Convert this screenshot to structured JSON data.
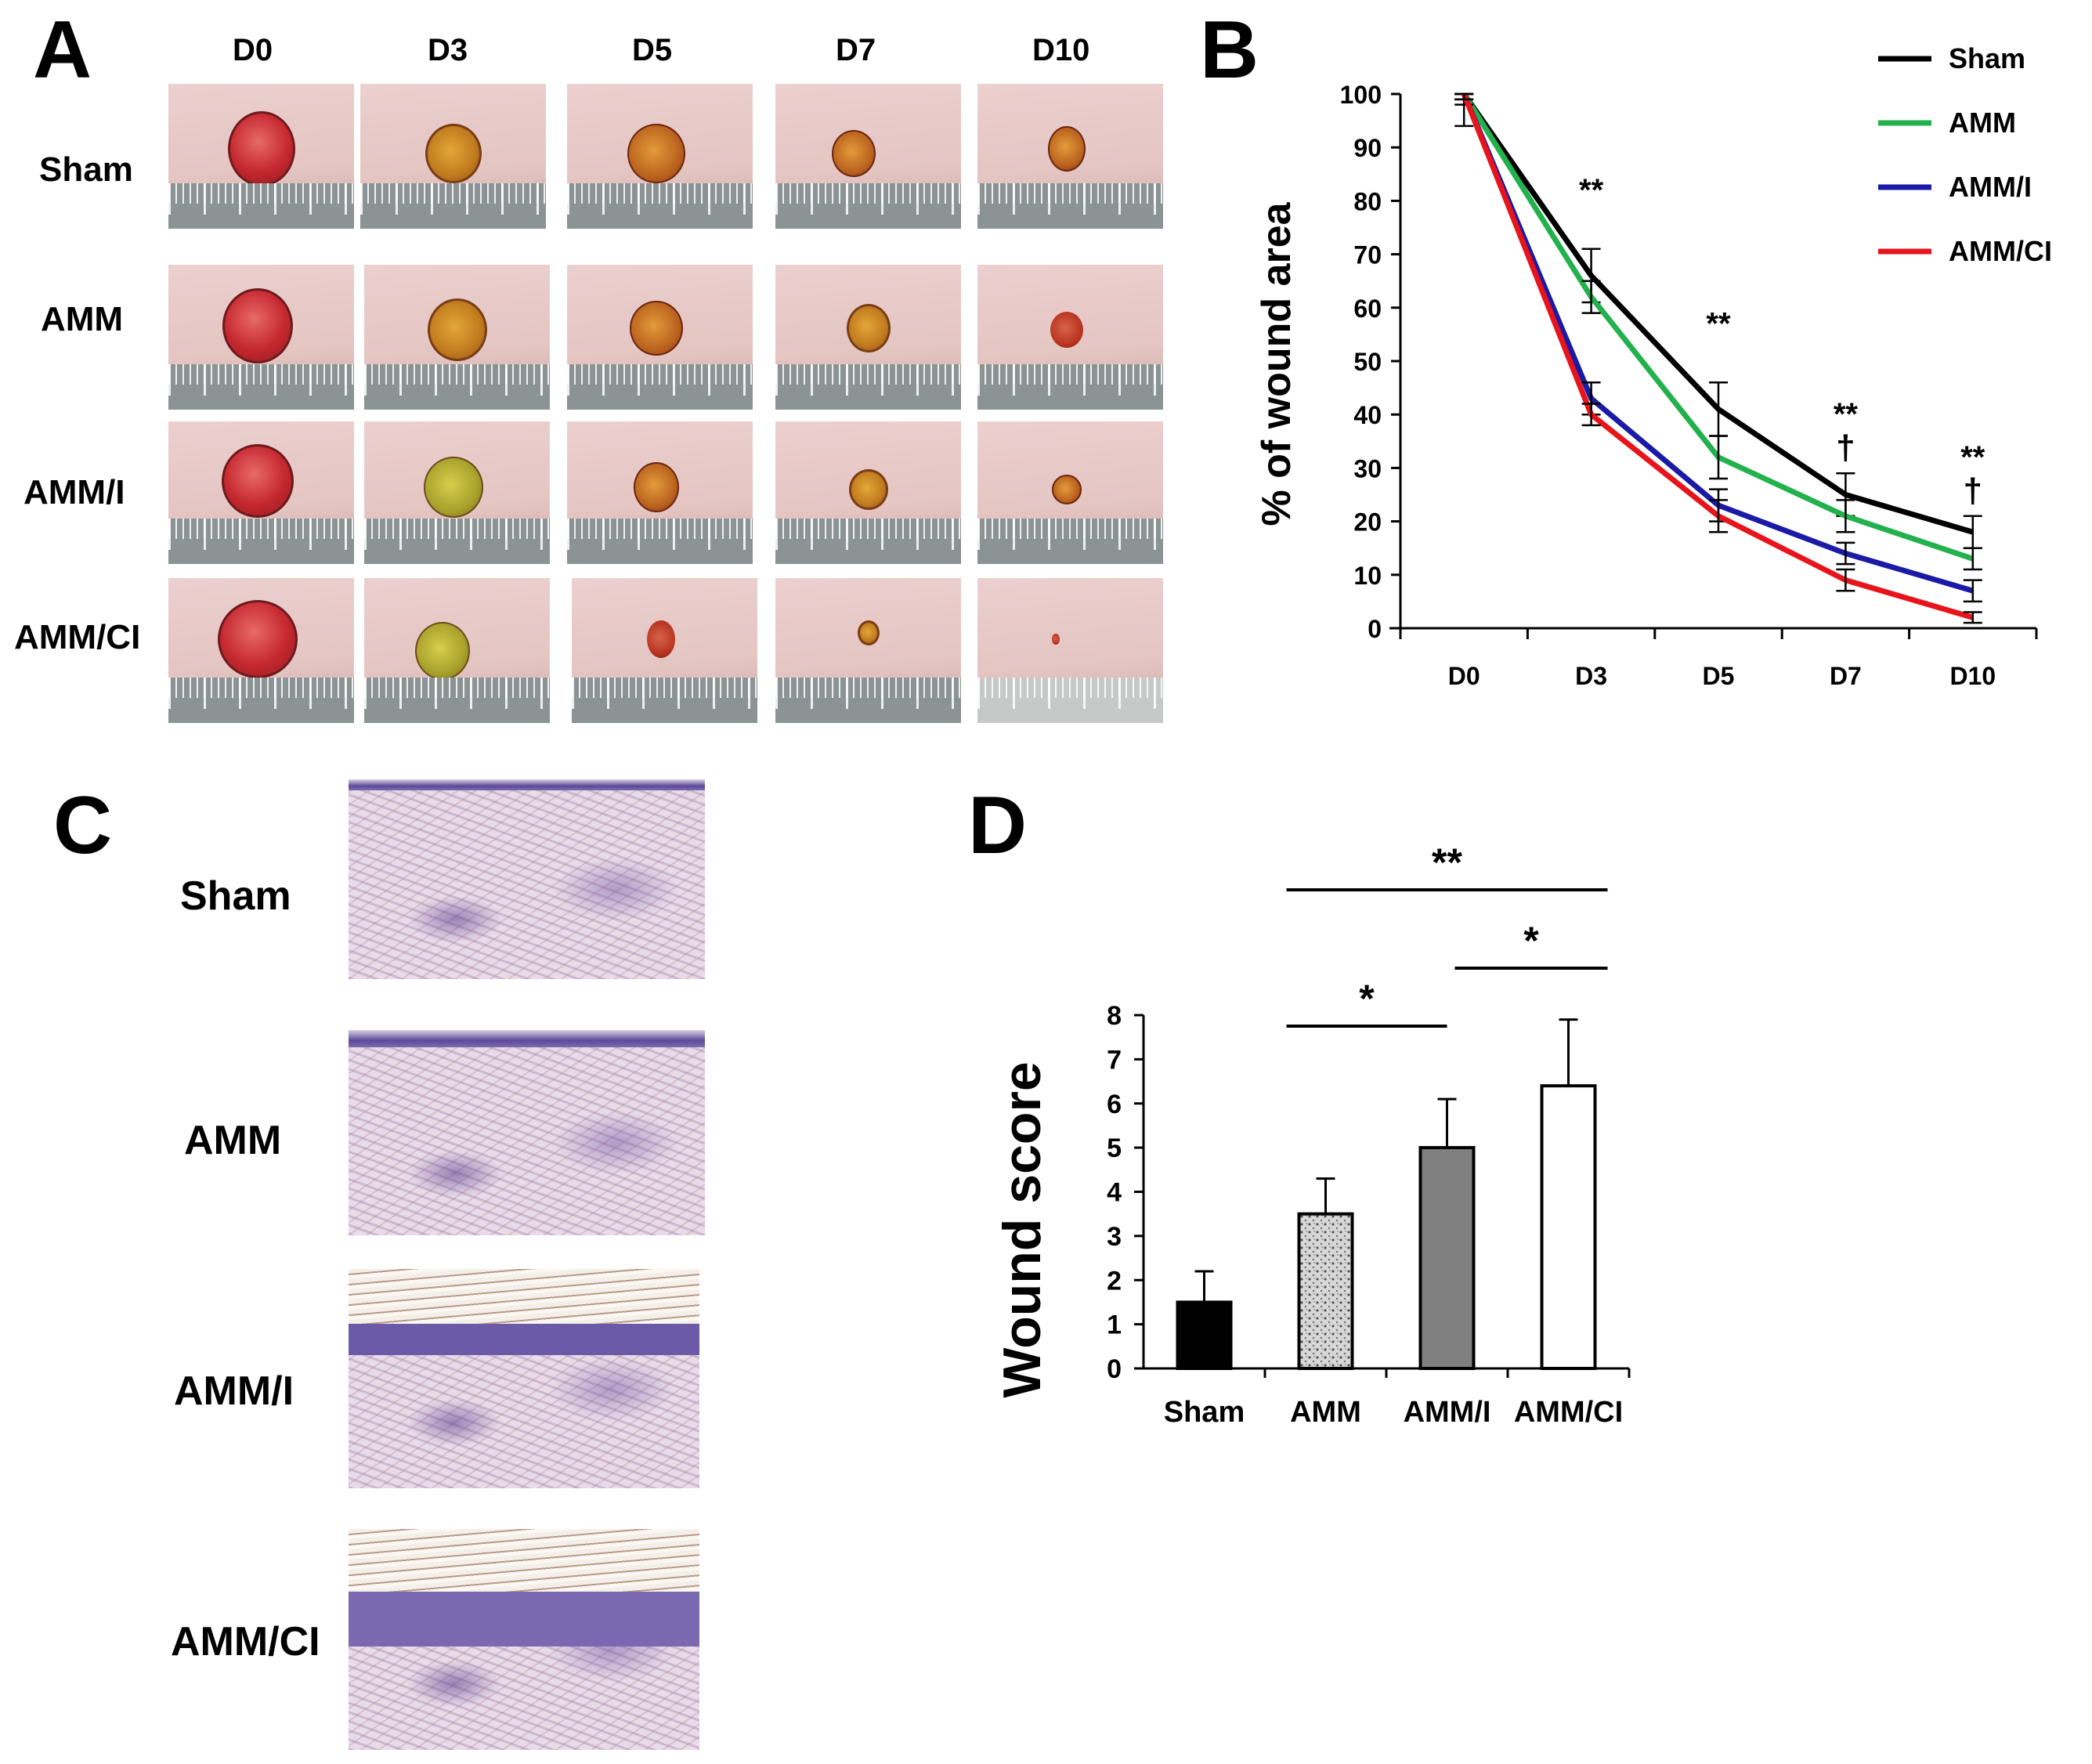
{
  "panel_labels": {
    "a": "A",
    "b": "B",
    "c": "C",
    "d": "D"
  },
  "panel_a": {
    "days": [
      "D0",
      "D3",
      "D5",
      "D7",
      "D10"
    ],
    "groups": [
      "Sham",
      "AMM",
      "AMM/I",
      "AMM/CI"
    ]
  },
  "panel_c": {
    "groups": [
      "Sham",
      "AMM",
      "AMM/I",
      "AMM/CI"
    ]
  },
  "chart_data": [
    {
      "type": "line",
      "panel": "B",
      "ylabel": "% of wound area",
      "xlabel": "",
      "x": [
        "D0",
        "D3",
        "D5",
        "D7",
        "D10"
      ],
      "ylim": [
        0,
        100
      ],
      "yticks": [
        "0",
        "10",
        "20",
        "30",
        "40",
        "50",
        "60",
        "70",
        "80",
        "90",
        "100"
      ],
      "series": [
        {
          "name": "Sham",
          "color": "#000000",
          "values": [
            100,
            66,
            41,
            25,
            18
          ],
          "errors": [
            6,
            5,
            5,
            4,
            3
          ]
        },
        {
          "name": "AMM",
          "color": "#22b14c",
          "values": [
            100,
            62,
            32,
            21,
            13
          ],
          "errors": [
            2,
            3,
            4,
            3,
            2
          ]
        },
        {
          "name": "AMM/I",
          "color": "#1a1aa6",
          "values": [
            100,
            43,
            23,
            14,
            7
          ],
          "errors": [
            1,
            3,
            3,
            2,
            2
          ]
        },
        {
          "name": "AMM/CI",
          "color": "#e8141c",
          "values": [
            100,
            40,
            21,
            9,
            2
          ],
          "errors": [
            1,
            2,
            3,
            2,
            1
          ]
        }
      ],
      "annotations": [
        {
          "x": "D3",
          "text": "**"
        },
        {
          "x": "D5",
          "text": "**"
        },
        {
          "x": "D7",
          "text": "**"
        },
        {
          "x": "D7",
          "text": "†"
        },
        {
          "x": "D10",
          "text": "**"
        },
        {
          "x": "D10",
          "text": "†"
        }
      ]
    },
    {
      "type": "bar",
      "panel": "D",
      "ylabel": "Wound score",
      "xlabel": "",
      "categories": [
        "Sham",
        "AMM",
        "AMM/I",
        "AMM/CI"
      ],
      "values": [
        1.5,
        3.5,
        5.0,
        6.4
      ],
      "errors": [
        0.7,
        0.8,
        1.1,
        1.5
      ],
      "ylim": [
        0,
        8
      ],
      "yticks": [
        "0",
        "1",
        "2",
        "3",
        "4",
        "5",
        "6",
        "7",
        "8"
      ],
      "fills": [
        "#000000",
        "#cfcfcf",
        "#808080",
        "#ffffff"
      ],
      "significance": [
        {
          "from": "AMM",
          "to": "AMM/CI",
          "text": "**"
        },
        {
          "from": "AMM",
          "to": "AMM/I",
          "text": "*"
        },
        {
          "from": "AMM/I",
          "to": "AMM/CI",
          "text": "*"
        }
      ]
    }
  ]
}
